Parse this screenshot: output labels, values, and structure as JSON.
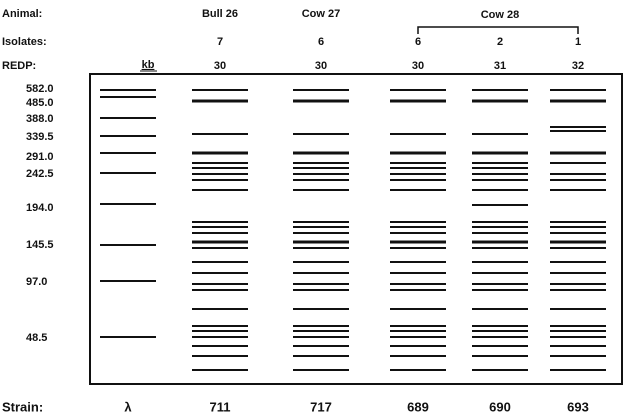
{
  "row_labels": {
    "animal": "Animal:",
    "isolates": "Isolates:",
    "redp": "REDP:",
    "strain": "Strain:"
  },
  "size_unit": "kb",
  "sizes": [
    "582.0",
    "485.0",
    "388.0",
    "339.5",
    "291.0",
    "242.5",
    "194.0",
    "145.5",
    "97.0",
    "48.5"
  ],
  "lanes": [
    {
      "strain": "λ"
    },
    {
      "animal": "Bull 26",
      "isolates": 7,
      "redp": 30,
      "strain": 711
    },
    {
      "animal": "Cow 27",
      "isolates": 6,
      "redp": 30,
      "strain": 717
    },
    {
      "isolates": 6,
      "redp": 30,
      "strain": 689
    },
    {
      "isolates": 2,
      "redp": 31,
      "strain": 690
    },
    {
      "isolates": 1,
      "redp": 32,
      "strain": 693
    }
  ],
  "group": {
    "animal": "Cow 28"
  }
}
